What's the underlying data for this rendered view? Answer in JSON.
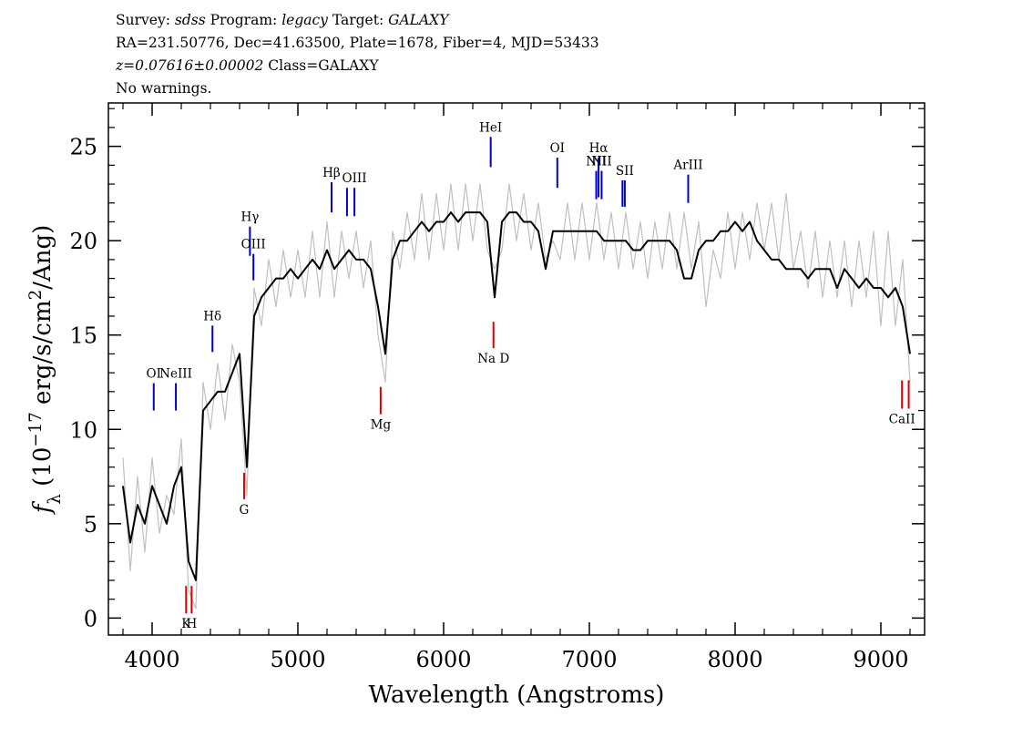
{
  "chart_data": {
    "type": "line",
    "title_lines": [
      [
        {
          "text": "Survey: "
        },
        {
          "text": "sdss",
          "italic": true
        },
        {
          "text": " Program: "
        },
        {
          "text": "legacy",
          "italic": true
        },
        {
          "text": " Target: "
        },
        {
          "text": "GALAXY",
          "italic": true
        }
      ],
      [
        {
          "text": "RA=231.50776, Dec=41.63500, Plate=1678, Fiber=4, MJD=53433"
        }
      ],
      [
        {
          "text": "z=0.07616±0.00002",
          "italic": true
        },
        {
          "text": " Class=GALAXY"
        }
      ],
      [
        {
          "text": "No warnings."
        }
      ]
    ],
    "xlabel": "Wavelength (Angstroms)",
    "ylabel": [
      {
        "text": "f",
        "italic": true
      },
      {
        "text": "λ",
        "sub": true
      },
      {
        "text": " (10"
      },
      {
        "text": "−17",
        "sup": true
      },
      {
        "text": " erg/s/cm"
      },
      {
        "text": "2",
        "sup": true
      },
      {
        "text": "/Ang)"
      }
    ],
    "x": [
      3800,
      3850,
      3900,
      3950,
      4000,
      4050,
      4100,
      4150,
      4200,
      4250,
      4300,
      4350,
      4400,
      4450,
      4500,
      4550,
      4600,
      4650,
      4700,
      4750,
      4800,
      4850,
      4900,
      4950,
      5000,
      5050,
      5100,
      5150,
      5200,
      5250,
      5300,
      5350,
      5400,
      5450,
      5500,
      5550,
      5600,
      5650,
      5700,
      5750,
      5800,
      5850,
      5900,
      5950,
      6000,
      6050,
      6100,
      6150,
      6200,
      6250,
      6300,
      6350,
      6400,
      6450,
      6500,
      6550,
      6600,
      6650,
      6700,
      6750,
      6800,
      6850,
      6900,
      6950,
      7000,
      7050,
      7100,
      7150,
      7200,
      7250,
      7300,
      7350,
      7400,
      7450,
      7500,
      7550,
      7600,
      7650,
      7700,
      7750,
      7800,
      7850,
      7900,
      7950,
      8000,
      8050,
      8100,
      8150,
      8200,
      8250,
      8300,
      8350,
      8400,
      8450,
      8500,
      8550,
      8600,
      8650,
      8700,
      8750,
      8800,
      8850,
      8900,
      8950,
      9000,
      9050,
      9100,
      9150,
      9200
    ],
    "series": [
      {
        "color": "#c0c0c0",
        "values": [
          8.5,
          2.5,
          7.5,
          3.5,
          8.5,
          4.5,
          6.5,
          5.5,
          9.5,
          1.5,
          0.5,
          12.5,
          10,
          13.5,
          10.5,
          14.5,
          12.5,
          6.5,
          17.5,
          15.5,
          19,
          16.5,
          19.5,
          17,
          19.5,
          17,
          20.5,
          17,
          21,
          17,
          20.5,
          18,
          20.5,
          17.5,
          20,
          15,
          12.5,
          20.5,
          18.5,
          21.5,
          19,
          22.5,
          19,
          22.5,
          19.5,
          23,
          19.5,
          23,
          20,
          23,
          19.5,
          18.5,
          19.5,
          23,
          20,
          22.5,
          19.5,
          22,
          19,
          20,
          19,
          22,
          19,
          22,
          19,
          22,
          19,
          21.5,
          18.5,
          21.5,
          18.5,
          21,
          18,
          21,
          18.5,
          21.5,
          18.5,
          21.5,
          18.5,
          21,
          16.5,
          19.5,
          18,
          21.5,
          18.5,
          21.5,
          19,
          22,
          19.5,
          22,
          19,
          22.5,
          18.5,
          20.5,
          17.5,
          20.5,
          17,
          20,
          17,
          20,
          16.5,
          20,
          17,
          20.5,
          15.5,
          20.5,
          15.5,
          19,
          12.5
        ]
      },
      {
        "color": "#000000",
        "values": [
          7,
          4,
          6,
          5,
          7,
          6,
          5,
          7,
          8,
          3,
          2,
          11,
          11.5,
          12,
          12,
          13,
          14,
          8,
          16,
          17,
          17.5,
          18,
          18,
          18.5,
          18,
          18.5,
          19,
          18.5,
          19.5,
          18.5,
          19,
          19.5,
          19,
          19,
          18.5,
          16.5,
          14,
          19,
          20,
          20,
          20.5,
          21,
          20.5,
          21,
          21,
          21.5,
          21,
          21.5,
          21.5,
          21.5,
          21,
          17,
          21,
          21.5,
          21.5,
          21,
          21,
          20.5,
          18.5,
          20.5,
          20.5,
          20.5,
          20.5,
          20.5,
          20.5,
          20.5,
          20,
          20,
          20,
          20,
          19.5,
          19.5,
          20,
          20,
          20,
          20,
          19.5,
          18,
          18,
          19.5,
          20,
          20,
          20.5,
          20.5,
          21,
          20.5,
          21,
          20,
          19.5,
          19,
          19,
          18.5,
          18.5,
          18.5,
          18,
          18.5,
          18.5,
          18.5,
          17.5,
          18.5,
          18,
          17.5,
          18,
          17.5,
          17.5,
          17,
          17.5,
          16.5,
          14
        ]
      }
    ],
    "lines": [
      {
        "label": "OI",
        "wavelength": 4011,
        "top": 12.45,
        "bottom": 11.0,
        "color": "#0000cc",
        "kind": "emission"
      },
      {
        "label": "NeIII",
        "wavelength": 4163,
        "top": 12.45,
        "bottom": 11.0,
        "color": "#0000cc",
        "kind": "emission"
      },
      {
        "label": "Hδ",
        "wavelength": 4414,
        "top": 15.5,
        "bottom": 14.1,
        "color": "#0000cc",
        "kind": "emission"
      },
      {
        "label": "Hγ",
        "wavelength": 4671,
        "top": 20.75,
        "bottom": 19.2,
        "color": "#0000cc",
        "kind": "emission"
      },
      {
        "label": "OIII",
        "wavelength": 4695,
        "top": 19.3,
        "bottom": 17.9,
        "color": "#0000cc",
        "kind": "emission"
      },
      {
        "label": "Hβ",
        "wavelength": 5231,
        "top": 23.1,
        "bottom": 21.5,
        "color": "#0000cc",
        "kind": "emission"
      },
      {
        "label": null,
        "wavelength": 5337,
        "top": 22.8,
        "bottom": 21.3,
        "color": "#0000cc",
        "kind": "emission"
      },
      {
        "label": "OIII",
        "wavelength": 5388,
        "top": 22.8,
        "bottom": 21.3,
        "color": "#0000cc",
        "kind": "emission"
      },
      {
        "label": "HeI",
        "wavelength": 6323,
        "top": 25.5,
        "bottom": 23.9,
        "color": "#0000cc",
        "kind": "emission"
      },
      {
        "label": "OI",
        "wavelength": 6780,
        "top": 24.4,
        "bottom": 22.8,
        "color": "#0000cc",
        "kind": "emission"
      },
      {
        "label": "NII",
        "wavelength": 7047,
        "top": 23.7,
        "bottom": 22.2,
        "color": "#0000cc",
        "kind": "emission"
      },
      {
        "label": "Hα",
        "wavelength": 7063,
        "top": 24.4,
        "bottom": 22.3,
        "color": "#0000cc",
        "kind": "emission"
      },
      {
        "label": "NII",
        "wavelength": 7084,
        "top": 23.7,
        "bottom": 22.2,
        "color": "#0000cc",
        "kind": "emission"
      },
      {
        "label": null,
        "wavelength": 7227,
        "top": 23.2,
        "bottom": 21.8,
        "color": "#0000cc",
        "kind": "emission"
      },
      {
        "label": "SII",
        "wavelength": 7243,
        "top": 23.2,
        "bottom": 21.8,
        "color": "#0000cc",
        "kind": "emission"
      },
      {
        "label": "ArIII",
        "wavelength": 7678,
        "top": 23.5,
        "bottom": 22.0,
        "color": "#0000cc",
        "kind": "emission"
      },
      {
        "label": "K",
        "wavelength": 4233,
        "top": 1.7,
        "bottom": 0.25,
        "color": "#dd0000",
        "kind": "absorption"
      },
      {
        "label": "H",
        "wavelength": 4271,
        "top": 1.7,
        "bottom": 0.25,
        "color": "#dd0000",
        "kind": "absorption"
      },
      {
        "label": "G",
        "wavelength": 4631,
        "top": 7.7,
        "bottom": 6.3,
        "color": "#dd0000",
        "kind": "absorption"
      },
      {
        "label": "Mg",
        "wavelength": 5568,
        "top": 12.25,
        "bottom": 10.8,
        "color": "#dd0000",
        "kind": "absorption"
      },
      {
        "label": "Na D",
        "wavelength": 6342,
        "top": 15.7,
        "bottom": 14.3,
        "color": "#dd0000",
        "kind": "absorption"
      },
      {
        "label": "CaII",
        "wavelength": 9145,
        "top": 12.6,
        "bottom": 11.1,
        "color": "#dd0000",
        "kind": "absorption"
      },
      {
        "label": null,
        "wavelength": 9191,
        "top": 12.6,
        "bottom": 11.1,
        "color": "#dd0000",
        "kind": "absorption"
      }
    ],
    "xlim": [
      3700,
      9300
    ],
    "ylim": [
      -0.9,
      27.3
    ],
    "xticks": [
      4000,
      5000,
      6000,
      7000,
      8000,
      9000
    ],
    "yticks": [
      0,
      5,
      10,
      15,
      20,
      25
    ],
    "xminorticks": [
      3800,
      4200,
      4400,
      4600,
      4800,
      5200,
      5400,
      5600,
      5800,
      6200,
      6400,
      6600,
      6800,
      7200,
      7400,
      7600,
      7800,
      8200,
      8400,
      8600,
      8800,
      9200
    ],
    "yminorticks": [
      1,
      2,
      3,
      4,
      6,
      7,
      8,
      9,
      11,
      12,
      13,
      14,
      16,
      17,
      18,
      19,
      21,
      22,
      23,
      24,
      26,
      27
    ]
  }
}
